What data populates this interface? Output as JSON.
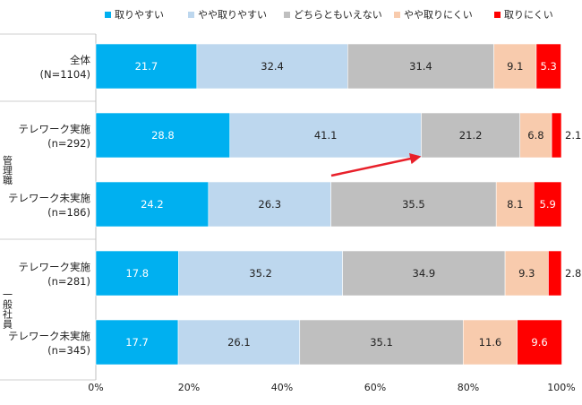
{
  "chart_data": {
    "type": "bar",
    "orientation": "horizontal",
    "stacked": true,
    "legend_position": "top",
    "grid": false,
    "xlim": [
      0,
      100
    ],
    "x_tick_labels": [
      "0%",
      "20%",
      "40%",
      "60%",
      "80%",
      "100%"
    ],
    "group_labels": [
      "管理職",
      "一般社員"
    ],
    "categories": [
      {
        "line1": "全体",
        "line2": "(N=1104)"
      },
      {
        "line1": "テレワーク実施",
        "line2": "(n=292)"
      },
      {
        "line1": "テレワーク未実施",
        "line2": "(n=186)"
      },
      {
        "line1": "テレワーク実施",
        "line2": "(n=281)"
      },
      {
        "line1": "テレワーク未実施",
        "line2": "(n=345)"
      }
    ],
    "series": [
      {
        "name": "取りやすい",
        "color": "#00b0f0",
        "label_color": "#ffffff",
        "values": [
          21.7,
          28.8,
          24.2,
          17.8,
          17.7
        ]
      },
      {
        "name": "やや取りやすい",
        "color": "#bdd7ee",
        "label_color": "#222222",
        "values": [
          32.4,
          41.1,
          26.3,
          35.2,
          26.1
        ]
      },
      {
        "name": "どちらともいえない",
        "color": "#bfbfbf",
        "label_color": "#222222",
        "values": [
          31.4,
          21.2,
          35.5,
          34.9,
          35.1
        ]
      },
      {
        "name": "やや取りにくい",
        "color": "#f8cbad",
        "label_color": "#222222",
        "values": [
          9.1,
          6.8,
          8.1,
          9.3,
          11.6
        ]
      },
      {
        "name": "取りにくい",
        "color": "#ff0000",
        "label_color": "#ffffff",
        "values": [
          5.3,
          2.1,
          5.9,
          2.8,
          9.6
        ]
      }
    ],
    "arrow_color": "#e8202a"
  }
}
